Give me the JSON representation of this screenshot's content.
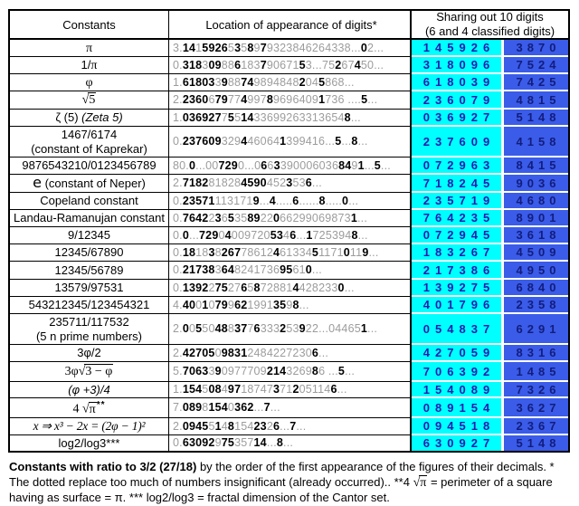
{
  "table": {
    "header": {
      "constants": "Constants",
      "location": "Location of appearance of digits*",
      "sharing_line1": "Sharing out 10 digits",
      "sharing_line2": "(6 and 4 classified digits)"
    },
    "rows": [
      {
        "label": [
          {
            "s": "sr",
            "v": "π"
          }
        ],
        "location": "3.14159265358979323846264338...02...",
        "six": "145926",
        "four": "3870"
      },
      {
        "label": [
          {
            "s": "t",
            "v": "1/"
          },
          {
            "s": "sr",
            "v": "π"
          }
        ],
        "location": "0.31830988618379067153...75267450...",
        "six": "318096",
        "four": "7524"
      },
      {
        "label": [
          {
            "s": "sr",
            "v": "φ"
          }
        ],
        "location": "1.6180339887498948482045868...",
        "six": "618039",
        "four": "7425"
      },
      {
        "label": [
          {
            "s": "sr",
            "v": "√"
          },
          {
            "s": "rad",
            "v": "5"
          }
        ],
        "location": "2.2360679774997896964091736 ....5...",
        "six": "236079",
        "four": "4815"
      },
      {
        "label": [
          {
            "s": "t",
            "v": "ζ (5) "
          },
          {
            "s": "i",
            "v": "(Zeta 5)"
          }
        ],
        "location": "1.03692775514336992633136548...",
        "six": "036927",
        "four": "5148"
      },
      {
        "label": [
          {
            "s": "t",
            "v": "1467/6174"
          }
        ],
        "label2": [
          {
            "s": "t",
            "v": "(constant of Kaprekar)"
          }
        ],
        "location": "0.2376093294460641399416...5...8...",
        "six": "237609",
        "four": "4158"
      },
      {
        "label": [
          {
            "s": "t",
            "v": "9876543210/0123456789"
          }
        ],
        "location": "80.0...007290...06633900060368491...5...",
        "six": "072963",
        "four": "8415"
      },
      {
        "label": [
          {
            "s": "e",
            "v": "e"
          },
          {
            "s": "t",
            "v": " (constant of Neper)"
          }
        ],
        "location": "2.71828182845904523536...",
        "six": "718245",
        "four": "9036"
      },
      {
        "label": [
          {
            "s": "t",
            "v": "Copeland constant"
          }
        ],
        "location": "0.235711131719...4.....6......8.....0...",
        "six": "235719",
        "four": "4680"
      },
      {
        "label": [
          {
            "s": "t",
            "v": "Landau-Ramanujan constant"
          }
        ],
        "location": "0.764223653589220662990698731...",
        "six": "764235",
        "four": "8901"
      },
      {
        "label": [
          {
            "s": "t",
            "v": "9/12345"
          }
        ],
        "location": "0.0...729040097205346...17253948...",
        "six": "072945",
        "four": "3618"
      },
      {
        "label": [
          {
            "s": "t",
            "v": "12345/67890"
          }
        ],
        "location": "0.18183826778612461334511710119...",
        "six": "183267",
        "four": "4509"
      },
      {
        "label": [
          {
            "s": "t",
            "v": "12345/56789"
          }
        ],
        "location": "0.21738364824173695610...",
        "six": "217386",
        "four": "4950"
      },
      {
        "label": [
          {
            "s": "t",
            "v": "13579/97531"
          }
        ],
        "location": "0.1392275276587288144282330...",
        "six": "139275",
        "four": "6840"
      },
      {
        "label": [
          {
            "s": "t",
            "v": "543212345/123454321"
          }
        ],
        "location": "4.400107996219913598...",
        "six": "401796",
        "four": "2358"
      },
      {
        "label": [
          {
            "s": "t",
            "v": "235711/117532"
          }
        ],
        "label2": [
          {
            "s": "t",
            "v": "(5 n prime numbers)"
          }
        ],
        "location": "2.005504883776333253922...044651...",
        "six": "054837",
        "four": "6291"
      },
      {
        "label": [
          {
            "s": "t",
            "v": "3φ/2"
          }
        ],
        "location": "2.427050983124842272306...",
        "six": "427059",
        "four": "8316"
      },
      {
        "label": [
          {
            "s": "sr",
            "v": "3φ"
          },
          {
            "s": "sr",
            "v": "√"
          },
          {
            "s": "rad",
            "v": "3 − φ"
          }
        ],
        "location": "5.7063390977709214326986 ...5...",
        "six": "706392",
        "four": "1485"
      },
      {
        "label": [
          {
            "s": "i",
            "v": "(φ +3)/4"
          }
        ],
        "location": "1.154508497187473712051146...",
        "six": "154089",
        "four": "7326"
      },
      {
        "label": [
          {
            "s": "sr",
            "v": "4 "
          },
          {
            "s": "sr",
            "v": "√"
          },
          {
            "s": "rad",
            "v": "π"
          },
          {
            "s": "sup",
            "v": "**"
          }
        ],
        "location": "7.08981540362...7...",
        "six": "089154",
        "four": "3627"
      },
      {
        "label": [
          {
            "s": "mi",
            "v": "x ⇒ x³ − 2x = (2φ − 1)²"
          }
        ],
        "location": "2.094551481542326...7...",
        "six": "094518",
        "four": "2367"
      },
      {
        "label": [
          {
            "s": "t",
            "v": "log2/log3***"
          }
        ],
        "location": "0.6309297535714...8...",
        "six": "630927",
        "four": "5148"
      }
    ]
  },
  "footer_segments": [
    {
      "s": "b",
      "v": "Constants with ratio to 3/2 (27/18)"
    },
    {
      "s": "t",
      "v": " by the order of the first appearance of the figures of their decimals. * The dotted replace too much of numbers insignificant (already occurred).. **4 "
    },
    {
      "s": "sr",
      "v": "√"
    },
    {
      "s": "rad",
      "v": "π"
    },
    {
      "s": "t",
      "v": " = perimeter of a square having as surface = π. *** log2/log3 = fractal dimension of the Cantor set."
    }
  ],
  "colors": {
    "six_bg": "#00ffff",
    "four_bg": "#3a5ce8",
    "six_text": "#1b1bae",
    "four_text": "#131c7d",
    "insignificant_digit": "#9c9c9c",
    "first_occurrence_digit": "#000000",
    "grid_line": "#000000"
  }
}
